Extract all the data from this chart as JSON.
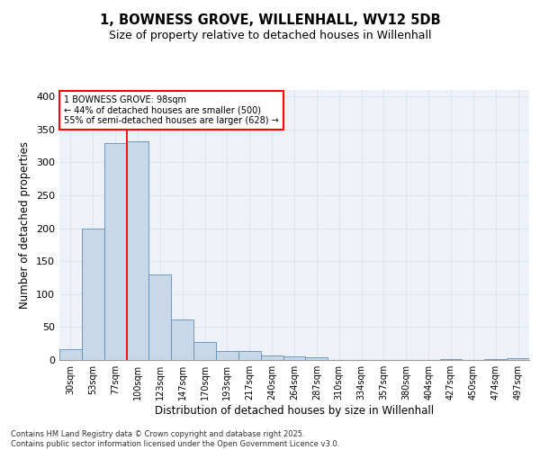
{
  "title": "1, BOWNESS GROVE, WILLENHALL, WV12 5DB",
  "subtitle": "Size of property relative to detached houses in Willenhall",
  "xlabel": "Distribution of detached houses by size in Willenhall",
  "ylabel": "Number of detached properties",
  "categories": [
    "30sqm",
    "53sqm",
    "77sqm",
    "100sqm",
    "123sqm",
    "147sqm",
    "170sqm",
    "193sqm",
    "217sqm",
    "240sqm",
    "264sqm",
    "287sqm",
    "310sqm",
    "334sqm",
    "357sqm",
    "380sqm",
    "404sqm",
    "427sqm",
    "450sqm",
    "474sqm",
    "497sqm"
  ],
  "values": [
    16,
    200,
    330,
    332,
    130,
    62,
    28,
    14,
    14,
    7,
    5,
    4,
    0,
    0,
    0,
    0,
    0,
    1,
    0,
    1,
    3
  ],
  "bar_color": "#c8d8e8",
  "bar_edge_color": "#5b8db8",
  "grid_color": "#dce6f0",
  "background_color": "#eef2f8",
  "annotation_text": "1 BOWNESS GROVE: 98sqm\n← 44% of detached houses are smaller (500)\n55% of semi-detached houses are larger (628) →",
  "property_line_x": 2.5,
  "ylim": [
    0,
    410
  ],
  "yticks": [
    0,
    50,
    100,
    150,
    200,
    250,
    300,
    350,
    400
  ],
  "footer": "Contains HM Land Registry data © Crown copyright and database right 2025.\nContains public sector information licensed under the Open Government Licence v3.0.",
  "title_fontsize": 10.5,
  "subtitle_fontsize": 9,
  "axis_label_fontsize": 8.5,
  "tick_fontsize": 7,
  "annotation_fontsize": 7
}
